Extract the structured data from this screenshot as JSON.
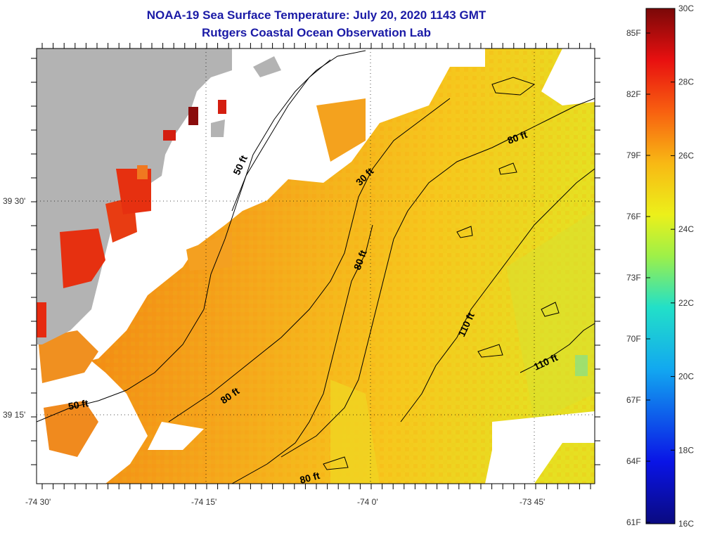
{
  "title": "NOAA-19 Sea Surface Temperature:  July 20, 2020 1143 GMT",
  "subtitle": "Rutgers Coastal Ocean Observation Lab",
  "map": {
    "lon_ticks": [
      "-74 30'",
      "-74 15'",
      "-74 0'",
      "-73 45'"
    ],
    "lat_ticks": [
      "39 30'",
      "39 15'"
    ],
    "contour_labels": [
      "50 ft",
      "30 ft",
      "80 ft",
      "80 ft",
      "110 ft",
      "110 ft",
      "80 ft",
      "50 ft",
      "80 ft"
    ],
    "colors": {
      "land": "#b3b3b3",
      "no_data": "#ffffff",
      "warm": "#f4a020",
      "hot": "#e83010"
    }
  },
  "colorbar": {
    "f_labels": [
      "85F",
      "82F",
      "79F",
      "76F",
      "73F",
      "70F",
      "67F",
      "64F",
      "61F"
    ],
    "c_labels": [
      "30C",
      "28C",
      "26C",
      "24C",
      "22C",
      "20C",
      "18C",
      "16C"
    ],
    "range_c": [
      16,
      30
    ]
  }
}
